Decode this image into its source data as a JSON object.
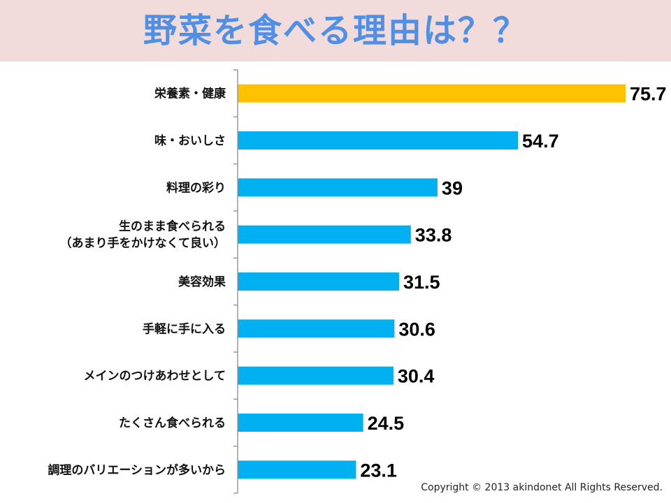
{
  "page": {
    "title": "野菜を食べる理由は？？"
  },
  "chart_data": {
    "type": "bar",
    "orientation": "horizontal",
    "title": "野菜を食べる理由は？？",
    "categories": [
      "栄養素・健康",
      "味・おいしさ",
      "料理の彩り",
      "生のまま食べられる\n（あまり手をかけなくて良い）",
      "美容効果",
      "手軽に手に入る",
      "メインのつけあわせとして",
      "たくさん食べられる",
      "調理のバリエーションが多いから"
    ],
    "values": [
      75.7,
      54.7,
      39,
      33.8,
      31.5,
      30.6,
      30.4,
      24.5,
      23.1
    ],
    "value_labels": [
      "75.7",
      "54.7",
      "39",
      "33.8",
      "31.5",
      "30.6",
      "30.4",
      "24.5",
      "23.1"
    ],
    "highlight_index": 0,
    "colors": {
      "highlight": "#ffc000",
      "default": "#00b0f0",
      "axis": "#999999"
    },
    "xlim": [
      0,
      80
    ],
    "grid": false,
    "legend": "none"
  },
  "footer": {
    "copyright": "Copyright © 2013 akindonet All Rights Reserved."
  }
}
